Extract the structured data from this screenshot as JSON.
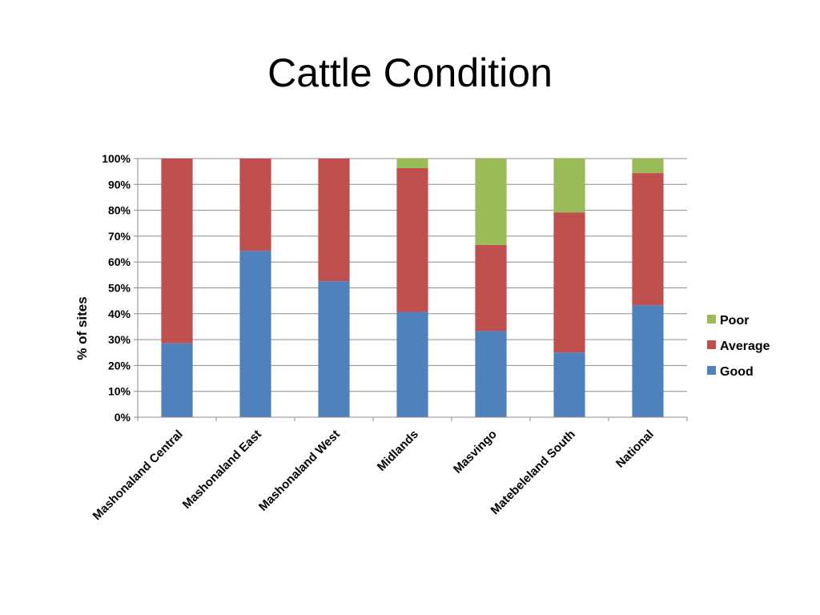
{
  "chart_data": {
    "type": "bar",
    "stacked": true,
    "title": "Cattle Condition",
    "ylabel": "% of sites",
    "xlabel": "",
    "ylim": [
      0,
      100
    ],
    "yticks": [
      "0%",
      "10%",
      "20%",
      "30%",
      "40%",
      "50%",
      "60%",
      "70%",
      "80%",
      "90%",
      "100%"
    ],
    "grid": true,
    "legend_position": "right",
    "categories": [
      "Mashonaland Central",
      "Mashonaland East",
      "Mashonaland West",
      "Midlands",
      "Masvingo",
      "Matebeleland South",
      "National"
    ],
    "series": [
      {
        "name": "Good",
        "color": "#4F81BD",
        "values": [
          28.6,
          64.3,
          52.6,
          40.7,
          33.3,
          25.0,
          43.3
        ]
      },
      {
        "name": "Average",
        "color": "#C0504D",
        "values": [
          71.4,
          35.7,
          47.4,
          55.6,
          33.3,
          54.2,
          51.1
        ]
      },
      {
        "name": "Poor",
        "color": "#9BBB59",
        "values": [
          0,
          0,
          0,
          3.7,
          33.4,
          20.8,
          5.6
        ]
      }
    ],
    "legend_order": [
      "Poor",
      "Average",
      "Good"
    ]
  }
}
